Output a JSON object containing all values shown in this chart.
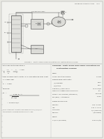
{
  "page_color": "#e8e8e2",
  "bg_color": "#d0d0c8",
  "text_dark": "#333333",
  "text_mid": "#555555",
  "text_light": "#888888",
  "line_color": "#555555",
  "header_text": "PROBLEM FORMULATION    #11",
  "top_label": "Condensed Vapor",
  "caption": "FIGURE 1.  Safety valve sizing calculations for fractionating columns.",
  "left_title": "with reduced temperature a",
  "Tr_line": "Tr  =  T/Tc  =        =  0.83",
  "Z_line1": "Flow compressibility factor, Z, is now obtained from Chart",
  "Z_line2": "C.1, page 188.",
  "Z_val": "Z  =  0.884",
  "rel_title": "Relieving",
  "W_result": "= 12419.5 lb/hr",
  "note1": "NOTE: Actual factor allocations and nozzle orifices (F/G/H/I/J) for",
  "note2": "the fractionation problem solution are not shown.",
  "prob_title1": "PROBLEM:  Safety Relief Valve Sizing Calculations for",
  "prob_title2": "Fractionating Columns",
  "given_label": "Given:",
  "given_items": [
    [
      "Normal Operating Pressure:",
      "11 Psig"
    ],
    [
      "Pressure Relief: Fractionators",
      ""
    ],
    [
      "   (1) Overhead",
      "0.000"
    ],
    [
      "   (2) Bottom",
      "0.271"
    ],
    [
      "Flow thru (1) Vapor Phase",
      "15,000 lb/hr"
    ],
    [
      "Maximum Allowable Working Pressure",
      "500"
    ],
    [
      "MAWP + 10% of MAWP (Set Pressure)",
      "550 Psig"
    ],
    [
      "PSF (psia) = Set Pressure",
      "8 Psia"
    ]
  ],
  "nozzle_label": "Nozzle Dimensions:",
  "nozzle_items": [
    [
      "Separator:",
      "0.87\" x 0.85\""
    ],
    [
      "Area:",
      "0.31 in² x 0.5\""
    ],
    [
      "Fluid Ratio:",
      "1/1 (minimum)"
    ],
    [
      "Standard:",
      "I (minimum)"
    ]
  ],
  "result_label": "Result:",
  "result_val1": "1-1/2 x 2 (minimum)",
  "result_val2": "0.0000 H (to)"
}
